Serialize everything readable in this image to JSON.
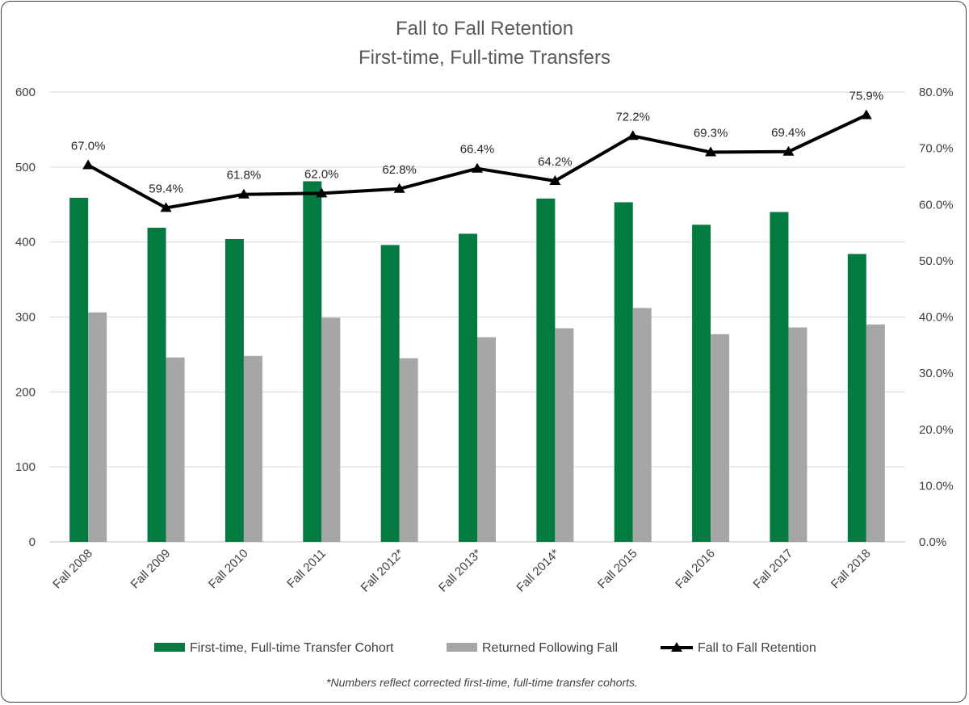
{
  "chart_data": {
    "type": "bar",
    "title": "Fall to Fall Retention",
    "subtitle": "First-time, Full-time Transfers",
    "categories": [
      "Fall 2008",
      "Fall 2009",
      "Fall 2010",
      "Fall 2011",
      "Fall 2012*",
      "Fall 2013*",
      "Fall 2014*",
      "Fall 2015",
      "Fall 2016",
      "Fall 2017",
      "Fall 2018"
    ],
    "series": [
      {
        "name": "First-time, Full-time Transfer Cohort",
        "type": "bar",
        "axis": "left",
        "color": "#037a3f",
        "values": [
          459,
          419,
          404,
          481,
          396,
          411,
          458,
          453,
          423,
          440,
          384
        ]
      },
      {
        "name": "Returned Following Fall",
        "type": "bar",
        "axis": "left",
        "color": "#a6a6a6",
        "values": [
          306,
          246,
          248,
          299,
          245,
          273,
          285,
          312,
          277,
          286,
          290
        ]
      },
      {
        "name": "Fall to Fall Retention",
        "type": "line",
        "axis": "right",
        "color": "#000000",
        "values": [
          67.0,
          59.4,
          61.8,
          62.0,
          62.8,
          66.4,
          64.2,
          72.2,
          69.3,
          69.4,
          75.9
        ],
        "labels": [
          "67.0%",
          "59.4%",
          "61.8%",
          "62.0%",
          "62.8%",
          "66.4%",
          "64.2%",
          "72.2%",
          "69.3%",
          "69.4%",
          "75.9%"
        ]
      }
    ],
    "ylim_left": [
      0,
      600
    ],
    "yticks_left": [
      "0",
      "100",
      "200",
      "300",
      "400",
      "500",
      "600"
    ],
    "ylim_right": [
      0,
      80
    ],
    "yticks_right": [
      "0.0%",
      "10.0%",
      "20.0%",
      "30.0%",
      "40.0%",
      "50.0%",
      "60.0%",
      "70.0%",
      "80.0%"
    ],
    "grid": true,
    "legend_position": "bottom"
  },
  "footnote": "*Numbers reflect corrected first-time, full-time transfer cohorts."
}
